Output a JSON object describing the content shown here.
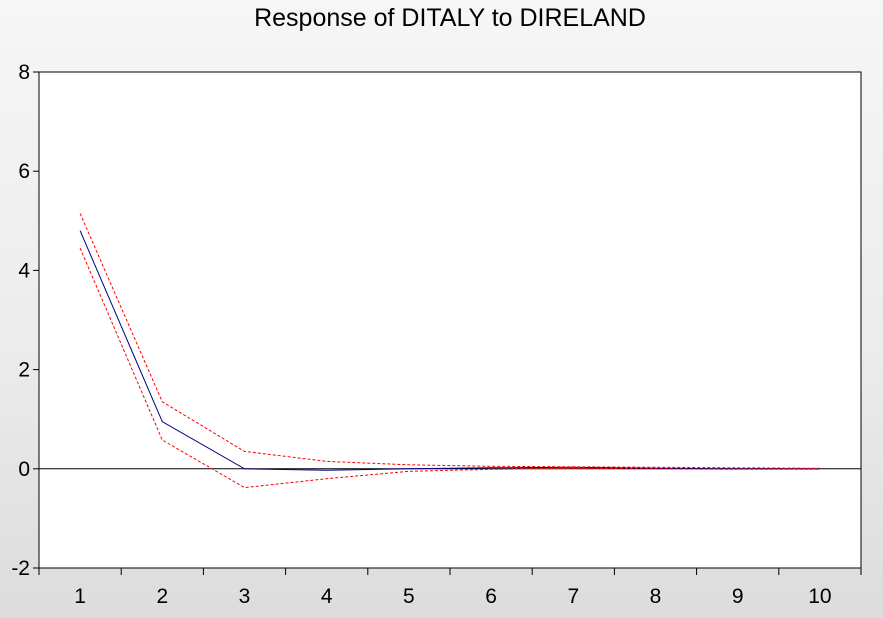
{
  "chart_data": {
    "type": "line",
    "title": "Response of DITALY to DIRELAND",
    "xlabel": "",
    "ylabel": "",
    "categories": [
      "1",
      "2",
      "3",
      "4",
      "5",
      "6",
      "7",
      "8",
      "9",
      "10"
    ],
    "ylim": [
      -2,
      8
    ],
    "yticks": [
      "-2",
      "0",
      "2",
      "4",
      "6",
      "8"
    ],
    "grid": false,
    "series": [
      {
        "name": "response",
        "color": "#000080",
        "style": "solid",
        "values": [
          4.8,
          0.95,
          0.0,
          -0.03,
          0.0,
          0.02,
          0.03,
          0.01,
          0.0,
          0.0
        ]
      },
      {
        "name": "upper band",
        "color": "#ff0000",
        "style": "dashed",
        "values": [
          5.15,
          1.35,
          0.35,
          0.15,
          0.08,
          0.05,
          0.04,
          0.03,
          0.02,
          0.01
        ]
      },
      {
        "name": "lower band",
        "color": "#ff0000",
        "style": "dashed",
        "values": [
          4.45,
          0.58,
          -0.38,
          -0.2,
          -0.05,
          -0.01,
          0.01,
          0.0,
          -0.01,
          -0.01
        ]
      }
    ],
    "zero_line_color": "#000000"
  }
}
